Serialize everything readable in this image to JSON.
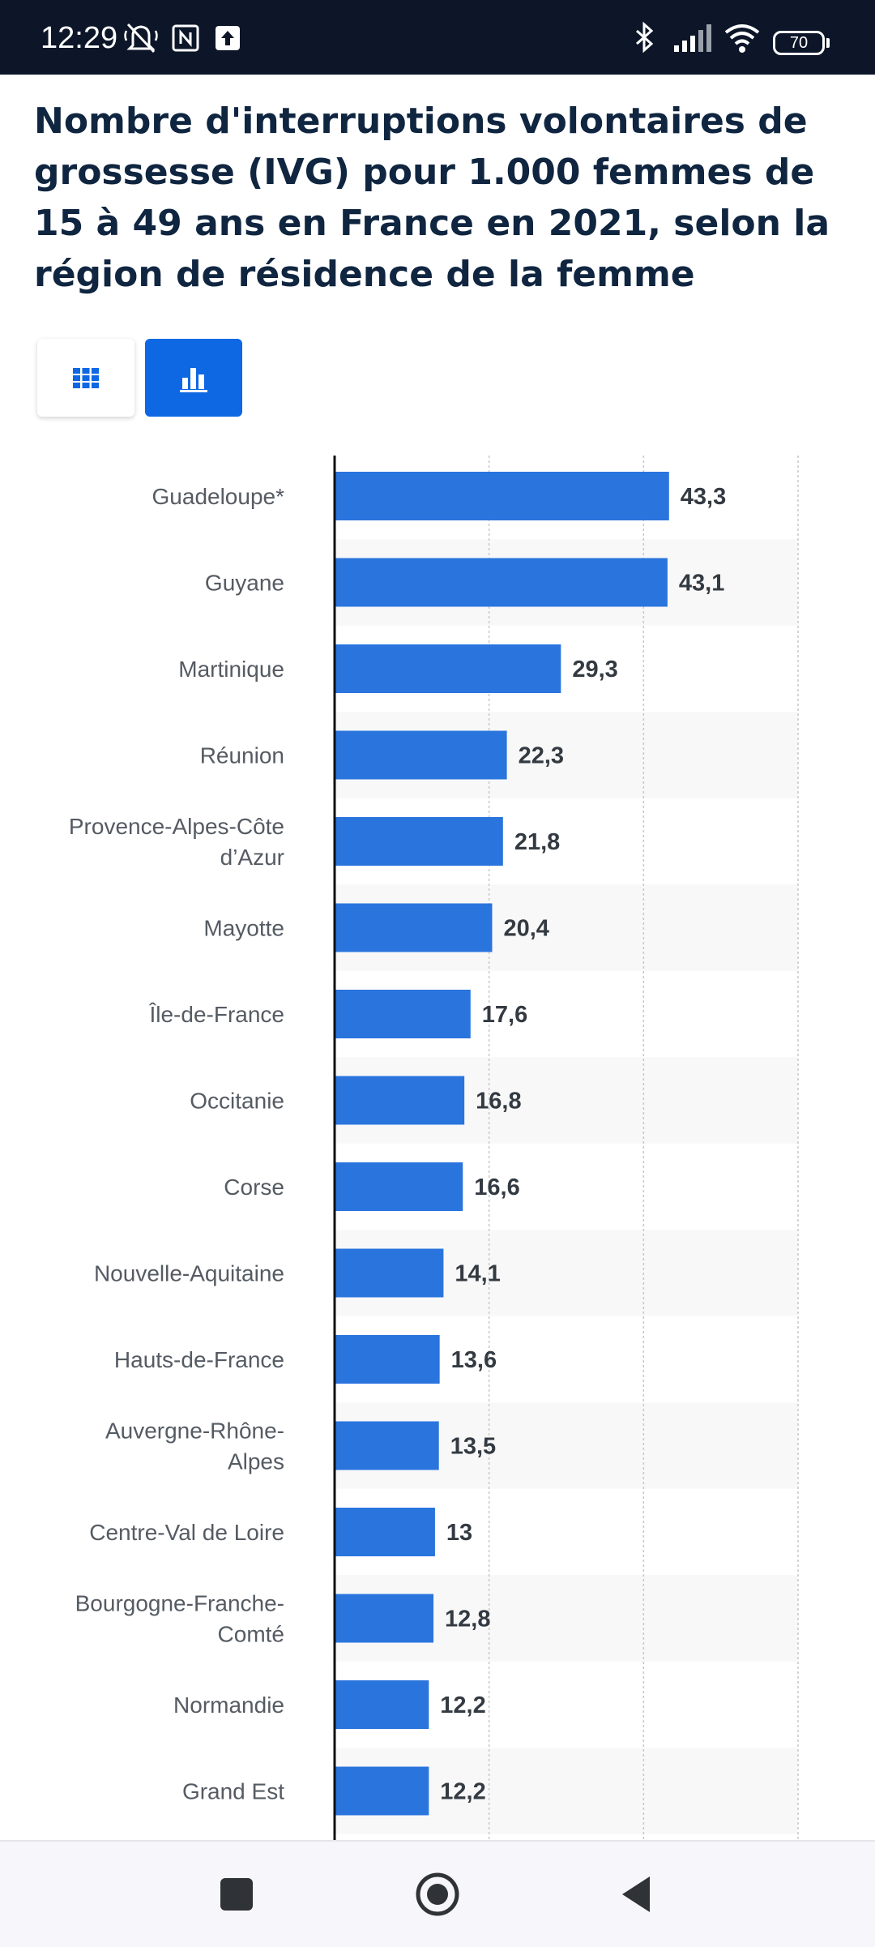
{
  "status_bar": {
    "time": "12:29",
    "battery": "70",
    "icons": [
      "mute-notifications-icon",
      "nfc-icon",
      "upload-icon",
      "bluetooth-icon",
      "signal-icon",
      "wifi-icon",
      "battery-icon"
    ]
  },
  "page": {
    "title": "Nombre d'interruptions volontaires de grossesse (IVG) pour 1.000 femmes de 15 à 49 ans en France en 2021, selon la région de résidence de la femme"
  },
  "view_toggle": {
    "table_icon": "grid-table-icon",
    "chart_icon": "bar-chart-icon",
    "active": "chart",
    "accent_color": "#0e67e3"
  },
  "chart_data": {
    "type": "bar",
    "orientation": "horizontal",
    "categories": [
      "Guadeloupe*",
      "Guyane",
      "Martinique",
      "Réunion",
      "Provence-Alpes-Côte d’Azur",
      "Mayotte",
      "Île-de-France",
      "Occitanie",
      "Corse",
      "Nouvelle-Aquitaine",
      "Hauts-de-France",
      "Auvergne-Rhône-Alpes",
      "Centre-Val de Loire",
      "Bourgogne-Franche-Comté",
      "Normandie",
      "Grand Est"
    ],
    "category_lines": [
      [
        "Guadeloupe*"
      ],
      [
        "Guyane"
      ],
      [
        "Martinique"
      ],
      [
        "Réunion"
      ],
      [
        "Provence-Alpes-Côte",
        "d’Azur"
      ],
      [
        "Mayotte"
      ],
      [
        "Île-de-France"
      ],
      [
        "Occitanie"
      ],
      [
        "Corse"
      ],
      [
        "Nouvelle-Aquitaine"
      ],
      [
        "Hauts-de-France"
      ],
      [
        "Auvergne-Rhône-",
        "Alpes"
      ],
      [
        "Centre-Val de Loire"
      ],
      [
        "Bourgogne-Franche-",
        "Comté"
      ],
      [
        "Normandie"
      ],
      [
        "Grand Est"
      ]
    ],
    "values": [
      43.3,
      43.1,
      29.3,
      22.3,
      21.8,
      20.4,
      17.6,
      16.8,
      16.6,
      14.1,
      13.6,
      13.5,
      13,
      12.8,
      12.2,
      12.2
    ],
    "value_labels": [
      "43,3",
      "43,1",
      "29,3",
      "22,3",
      "21,8",
      "20,4",
      "17,6",
      "16,8",
      "16,6",
      "14,1",
      "13,6",
      "13,5",
      "13",
      "12,8",
      "12,2",
      "12,2"
    ],
    "xlim": [
      0,
      60
    ],
    "gridlines_at": [
      20,
      40,
      60
    ],
    "grid": true,
    "title": "",
    "xlabel": "",
    "ylabel": "",
    "bar_color": "#2a74de",
    "stripe_color": "#f8f8f8"
  },
  "nav_bar": {
    "buttons": [
      "recents-square-icon",
      "home-circle-icon",
      "back-triangle-icon"
    ]
  }
}
